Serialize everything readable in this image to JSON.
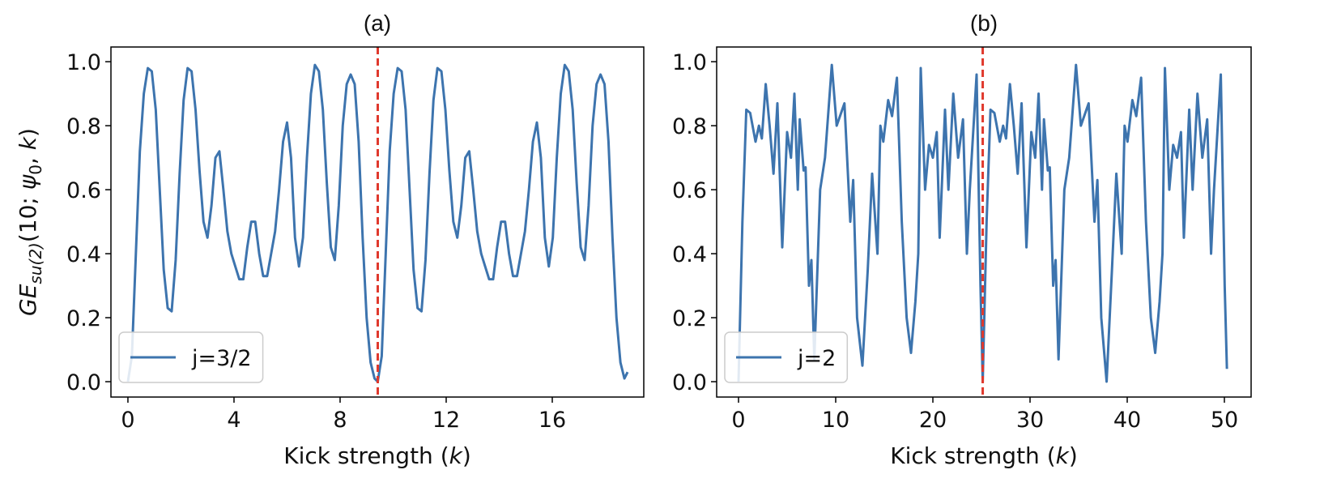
{
  "chart_data": [
    {
      "type": "line",
      "title": "(a)",
      "xlabel": [
        "Kick strength (",
        "k",
        ")"
      ],
      "ylabel": [
        "GE",
        "su(2)",
        "(10; ",
        "ψ",
        "0",
        ", ",
        "k",
        ")"
      ],
      "x": [
        0,
        0.15,
        0.3,
        0.45,
        0.6,
        0.75,
        0.9,
        1.05,
        1.2,
        1.35,
        1.5,
        1.65,
        1.8,
        1.95,
        2.1,
        2.25,
        2.4,
        2.55,
        2.7,
        2.85,
        3,
        3.15,
        3.3,
        3.45,
        3.6,
        3.75,
        3.9,
        4.05,
        4.2,
        4.35,
        4.5,
        4.65,
        4.8,
        4.95,
        5.1,
        5.25,
        5.4,
        5.55,
        5.7,
        5.85,
        6,
        6.15,
        6.3,
        6.45,
        6.6,
        6.75,
        6.9,
        7.05,
        7.2,
        7.35,
        7.5,
        7.65,
        7.8,
        7.95,
        8.1,
        8.25,
        8.4,
        8.55,
        8.7,
        8.85,
        9,
        9.15,
        9.3,
        9.42,
        9.57,
        9.72,
        9.87,
        10.02,
        10.17,
        10.32,
        10.47,
        10.62,
        10.77,
        10.92,
        11.07,
        11.22,
        11.37,
        11.52,
        11.67,
        11.82,
        11.97,
        12.12,
        12.27,
        12.42,
        12.57,
        12.72,
        12.87,
        13.02,
        13.17,
        13.32,
        13.47,
        13.62,
        13.77,
        13.92,
        14.07,
        14.22,
        14.37,
        14.52,
        14.67,
        14.82,
        14.97,
        15.12,
        15.27,
        15.42,
        15.57,
        15.72,
        15.87,
        16.02,
        16.17,
        16.32,
        16.47,
        16.62,
        16.77,
        16.92,
        17.07,
        17.22,
        17.37,
        17.52,
        17.67,
        17.82,
        17.97,
        18.12,
        18.27,
        18.42,
        18.57,
        18.72,
        18.84
      ],
      "series": [
        {
          "name": "j=3/2",
          "color": "#3d74ae",
          "values": [
            0,
            0.08,
            0.4,
            0.72,
            0.9,
            0.98,
            0.97,
            0.85,
            0.6,
            0.35,
            0.23,
            0.22,
            0.38,
            0.65,
            0.88,
            0.98,
            0.97,
            0.85,
            0.66,
            0.5,
            0.45,
            0.55,
            0.7,
            0.72,
            0.6,
            0.47,
            0.4,
            0.36,
            0.32,
            0.32,
            0.42,
            0.5,
            0.5,
            0.4,
            0.33,
            0.33,
            0.4,
            0.47,
            0.6,
            0.75,
            0.81,
            0.7,
            0.45,
            0.36,
            0.45,
            0.7,
            0.9,
            0.99,
            0.97,
            0.85,
            0.62,
            0.42,
            0.38,
            0.55,
            0.8,
            0.93,
            0.96,
            0.93,
            0.75,
            0.45,
            0.2,
            0.06,
            0.01,
            0.0,
            0.08,
            0.4,
            0.72,
            0.9,
            0.98,
            0.97,
            0.85,
            0.6,
            0.35,
            0.23,
            0.22,
            0.38,
            0.65,
            0.88,
            0.98,
            0.97,
            0.85,
            0.66,
            0.5,
            0.45,
            0.55,
            0.7,
            0.72,
            0.6,
            0.47,
            0.4,
            0.36,
            0.32,
            0.32,
            0.42,
            0.5,
            0.5,
            0.4,
            0.33,
            0.33,
            0.4,
            0.47,
            0.6,
            0.75,
            0.81,
            0.7,
            0.45,
            0.36,
            0.45,
            0.7,
            0.9,
            0.99,
            0.97,
            0.85,
            0.62,
            0.42,
            0.38,
            0.55,
            0.8,
            0.93,
            0.96,
            0.93,
            0.75,
            0.45,
            0.2,
            0.06,
            0.01,
            0.03
          ]
        }
      ],
      "xlim": [
        -0.64,
        19.45
      ],
      "ylim": [
        -0.048,
        1.046
      ],
      "xticks": [
        0,
        4,
        8,
        12,
        16
      ],
      "yticks": [
        {
          "value": 0,
          "label": "0.0"
        },
        0.2,
        0.4,
        0.6,
        0.8,
        {
          "value": 1,
          "label": "1.0"
        }
      ],
      "vline": {
        "x": 9.42,
        "color": "#e0392d"
      },
      "legend": "lower left"
    },
    {
      "type": "line",
      "title": "(b)",
      "xlabel": [
        "Kick strength (",
        "k",
        ")"
      ],
      "x": [
        0,
        0.4,
        0.8,
        1.2,
        1.75,
        2.1,
        2.4,
        2.8,
        3.2,
        3.6,
        4,
        4.5,
        5,
        5.4,
        5.75,
        6.1,
        6.3,
        6.7,
        6.9,
        7.25,
        7.5,
        7.8,
        8.4,
        8.9,
        9.6,
        10.1,
        10.9,
        11.5,
        11.8,
        12.2,
        12.75,
        13.3,
        13.75,
        14.3,
        14.6,
        14.9,
        15.4,
        15.8,
        16.3,
        16.8,
        17.3,
        17.75,
        18.2,
        18.5,
        18.75,
        19.2,
        19.6,
        20,
        20.4,
        20.7,
        21.25,
        21.6,
        22.1,
        22.6,
        23.1,
        23.5,
        23.8,
        24.5,
        24.9,
        25.13,
        25.53,
        25.93,
        26.33,
        26.88,
        27.23,
        27.53,
        27.93,
        28.33,
        28.73,
        29.13,
        29.63,
        30.13,
        30.53,
        30.88,
        31.23,
        31.43,
        31.83,
        32.03,
        32.38,
        32.63,
        32.93,
        33.53,
        34.03,
        34.73,
        35.23,
        36.03,
        36.63,
        36.93,
        37.33,
        37.88,
        38.43,
        38.88,
        39.43,
        39.73,
        40.03,
        40.53,
        40.93,
        41.43,
        41.93,
        42.43,
        42.88,
        43.33,
        43.63,
        43.88,
        44.33,
        44.73,
        45.13,
        45.53,
        45.83,
        46.38,
        46.73,
        47.23,
        47.73,
        48.23,
        48.63,
        48.93,
        49.63,
        50.03,
        50.26
      ],
      "series": [
        {
          "name": "j=2",
          "color": "#3d74ae",
          "values": [
            0,
            0.5,
            0.85,
            0.84,
            0.75,
            0.8,
            0.76,
            0.93,
            0.8,
            0.65,
            0.87,
            0.42,
            0.78,
            0.7,
            0.9,
            0.6,
            0.82,
            0.66,
            0.67,
            0.3,
            0.38,
            0.07,
            0.6,
            0.7,
            0.99,
            0.8,
            0.87,
            0.5,
            0.63,
            0.2,
            0.05,
            0.35,
            0.65,
            0.4,
            0.8,
            0.75,
            0.88,
            0.83,
            0.95,
            0.5,
            0.2,
            0.09,
            0.25,
            0.4,
            0.98,
            0.6,
            0.74,
            0.7,
            0.78,
            0.45,
            0.85,
            0.6,
            0.9,
            0.7,
            0.82,
            0.4,
            0.6,
            0.96,
            0.3,
            0.0,
            0.5,
            0.85,
            0.84,
            0.75,
            0.8,
            0.76,
            0.93,
            0.8,
            0.65,
            0.87,
            0.42,
            0.78,
            0.7,
            0.9,
            0.6,
            0.82,
            0.66,
            0.67,
            0.3,
            0.38,
            0.07,
            0.6,
            0.7,
            0.99,
            0.8,
            0.87,
            0.5,
            0.63,
            0.2,
            0.0,
            0.35,
            0.65,
            0.4,
            0.8,
            0.75,
            0.88,
            0.83,
            0.95,
            0.5,
            0.2,
            0.09,
            0.25,
            0.4,
            0.98,
            0.6,
            0.74,
            0.7,
            0.78,
            0.45,
            0.85,
            0.6,
            0.9,
            0.7,
            0.82,
            0.4,
            0.6,
            0.96,
            0.3,
            0.04
          ]
        }
      ],
      "xlim": [
        -2.25,
        52.75
      ],
      "ylim": [
        -0.048,
        1.046
      ],
      "xticks": [
        0,
        10,
        20,
        30,
        40,
        50
      ],
      "yticks": [
        {
          "value": 0,
          "label": "0.0"
        },
        0.2,
        0.4,
        0.6,
        0.8,
        {
          "value": 1,
          "label": "1.0"
        }
      ],
      "vline": {
        "x": 25.13,
        "color": "#e0392d"
      },
      "legend": "lower left"
    }
  ]
}
